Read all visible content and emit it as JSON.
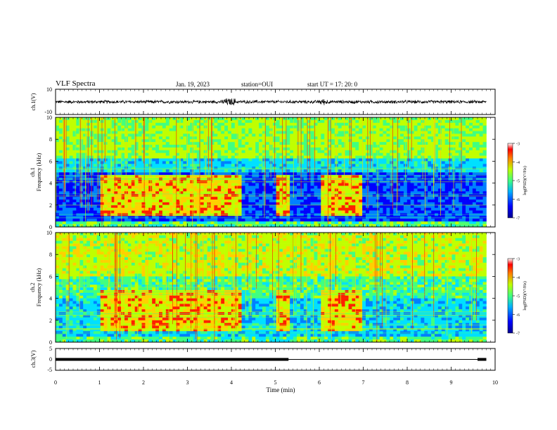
{
  "header": {
    "title": "VLF Spectra",
    "date": "Jan. 19, 2023",
    "station": "station=OUI",
    "start": "start UT =  17: 20: 0"
  },
  "colors": {
    "spectrogram": [
      "#000090",
      "#0000ff",
      "#0080ff",
      "#00e0ff",
      "#40ff80",
      "#c0ff00",
      "#ffd000",
      "#ff2000",
      "#ffffff"
    ]
  },
  "chart_data": [
    {
      "type": "line",
      "id": "ch1-waveform",
      "ylabel": "ch.1(V)",
      "ylim": [
        -10,
        10
      ],
      "yticks": [
        10,
        -10
      ],
      "description_of_signal": "noisy waveform centered near 0 V, amplitude about ±2 V with bursts up to ±4 V",
      "x_range": [
        0,
        10
      ]
    },
    {
      "type": "heatmap",
      "id": "ch1-spectrogram",
      "ylabel": "ch.1 Frequency (kHz)",
      "ylim": [
        0,
        10
      ],
      "yticks": [
        "0",
        "2",
        "4",
        "6",
        "8",
        "10"
      ],
      "colorbar": {
        "label": "log(PSD)(V²/Hz)",
        "range": [
          -7,
          -3
        ],
        "ticks": [
          "-3",
          "-4",
          "-5",
          "-6",
          "-7"
        ]
      },
      "activity_windows_min": [
        [
          1.0,
          4.2
        ],
        [
          5.0,
          5.3
        ],
        [
          6.0,
          7.0
        ]
      ],
      "activity_band_khz": [
        1.0,
        4.8
      ]
    },
    {
      "type": "heatmap",
      "id": "ch2-spectrogram",
      "ylabel": "ch.2 Frequency (kHz)",
      "ylim": [
        0,
        10
      ],
      "yticks": [
        "0",
        "2",
        "4",
        "6",
        "8",
        "10"
      ],
      "colorbar": {
        "label": "log(PSD)(V²/Hz)",
        "range": [
          -7,
          -3
        ],
        "ticks": [
          "-3",
          "-4",
          "-5",
          "-6",
          "-7"
        ]
      },
      "activity_windows_min": [
        [
          1.0,
          4.2
        ],
        [
          5.0,
          5.3
        ],
        [
          6.0,
          7.0
        ]
      ],
      "activity_band_khz": [
        1.0,
        4.8
      ]
    },
    {
      "type": "line",
      "id": "ch3-signal",
      "ylabel": "ch.3(V)",
      "ylim": [
        -5,
        5
      ],
      "yticks": [
        "5",
        "0",
        "-5"
      ],
      "x": [
        0,
        5.3,
        5.3,
        9.6,
        9.6,
        9.8
      ],
      "y": [
        0,
        0,
        0,
        0,
        0,
        0
      ],
      "segments_thick_min": [
        [
          0,
          5.3
        ],
        [
          9.6,
          9.8
        ]
      ]
    }
  ],
  "xaxis": {
    "label": "Time (min)",
    "ticks": [
      "0",
      "1",
      "2",
      "3",
      "4",
      "5",
      "6",
      "7",
      "8",
      "9",
      "10"
    ],
    "range": [
      0,
      10
    ]
  }
}
